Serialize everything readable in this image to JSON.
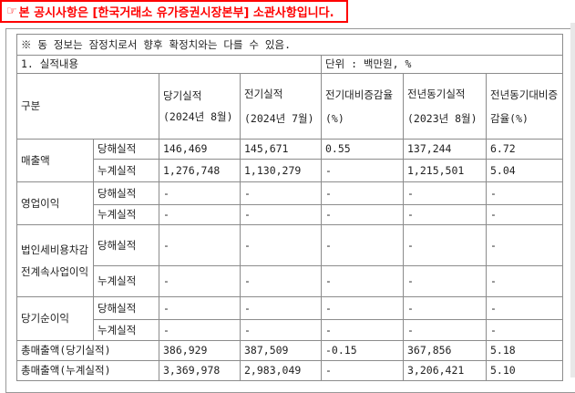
{
  "notice": {
    "icon": "pointing-hand-icon",
    "text": "본 공시사항은 [한국거래소 유가증권시장본부] 소관사항입니다.",
    "color": "#ff0000"
  },
  "table": {
    "note": "※ 동 정보는 잠정치로서 향후 확정치와는 다를 수 있음.",
    "section": "1. 실적내용",
    "unit": "단위 : 백만원, %",
    "header": {
      "category": "구분",
      "current": {
        "title": "당기실적",
        "period": "(2024년 8월)"
      },
      "previous": {
        "title": "전기실적",
        "period": "(2024년 7월)"
      },
      "mom_change": "전기대비증감율(%)",
      "prev_year": {
        "title": "전년동기실적",
        "period": "(2023년 8월)"
      },
      "yoy_change": "전년동기대비증감율(%)"
    },
    "groups": [
      {
        "name": "매출액",
        "rows": [
          {
            "label": "당해실적",
            "values": [
              "146,469",
              "145,671",
              "0.55",
              "137,244",
              "6.72"
            ]
          },
          {
            "label": "누계실적",
            "values": [
              "1,276,748",
              "1,130,279",
              "-",
              "1,215,501",
              "5.04"
            ]
          }
        ]
      },
      {
        "name": "영업이익",
        "rows": [
          {
            "label": "당해실적",
            "values": [
              "-",
              "-",
              "-",
              "-",
              "-"
            ]
          },
          {
            "label": "누계실적",
            "values": [
              "-",
              "-",
              "-",
              "-",
              "-"
            ]
          }
        ]
      },
      {
        "name": "법인세비용차감전계속사업이익",
        "rows": [
          {
            "label": "당해실적",
            "values": [
              "-",
              "-",
              "-",
              "-",
              "-"
            ]
          },
          {
            "label": "누계실적",
            "values": [
              "-",
              "-",
              "-",
              "-",
              "-"
            ]
          }
        ]
      },
      {
        "name": "당기순이익",
        "rows": [
          {
            "label": "당해실적",
            "values": [
              "-",
              "-",
              "-",
              "-",
              "-"
            ]
          },
          {
            "label": "누계실적",
            "values": [
              "-",
              "-",
              "-",
              "-",
              "-"
            ]
          }
        ]
      }
    ],
    "totals": [
      {
        "label": "총매출액(당기실적)",
        "values": [
          "386,929",
          "387,509",
          "-0.15",
          "367,856",
          "5.18"
        ]
      },
      {
        "label": "총매출액(누계실적)",
        "values": [
          "3,369,978",
          "2,983,049",
          "-",
          "3,206,421",
          "5.10"
        ]
      }
    ]
  }
}
